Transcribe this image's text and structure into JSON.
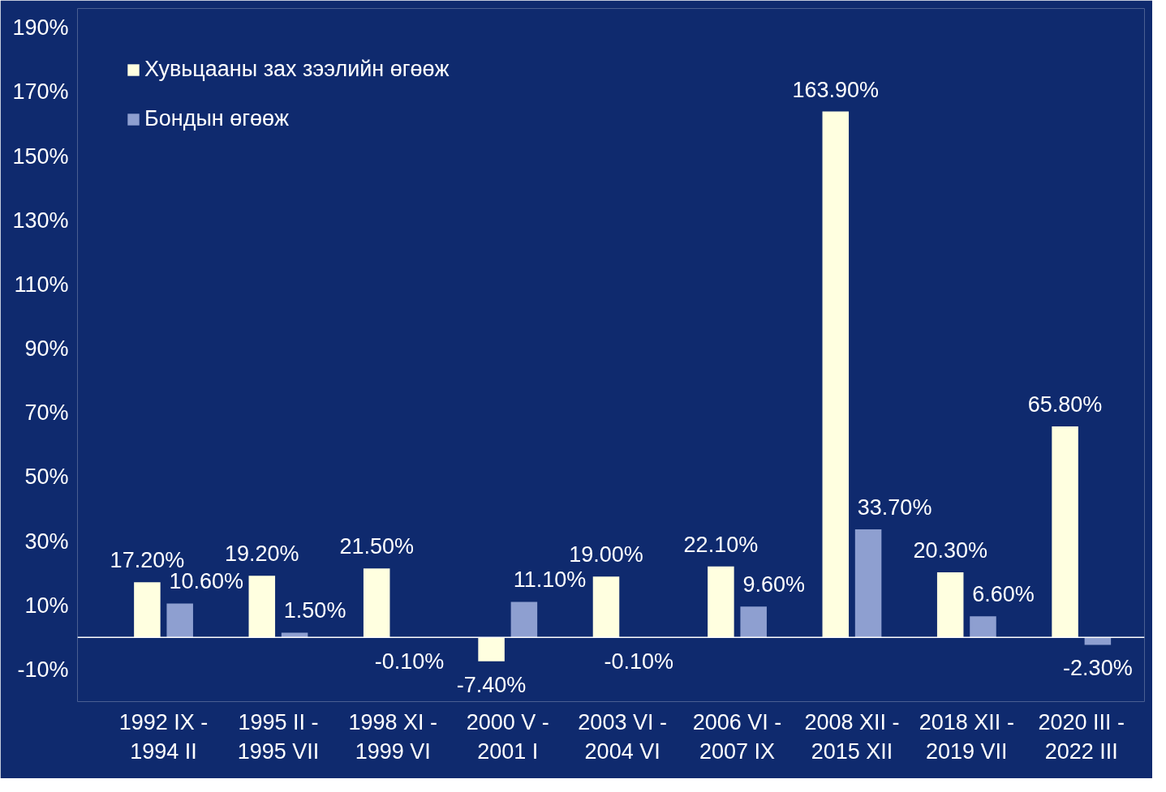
{
  "chart_data": {
    "type": "bar",
    "categories": [
      "1992 IX -\n1994 II",
      "1995 II -\n1995 VII",
      "1998 XI -\n1999 VI",
      "2000 V -\n2001 I",
      "2003 VI -\n2004 VI",
      "2006 VI -\n2007 IX",
      "2008 XII -\n2015 XII",
      "2018 XII -\n2019 VII",
      "2020 III -\n2022 III"
    ],
    "series": [
      {
        "name": "Хувьцааны зах зээлийн өгөөж",
        "color": "#ffffe0",
        "values": [
          17.2,
          19.2,
          21.5,
          -7.4,
          19.0,
          22.1,
          163.9,
          20.3,
          65.8
        ],
        "value_labels": [
          "17.20%",
          "19.20%",
          "21.50%",
          "-7.40%",
          "19.00%",
          "22.10%",
          "163.90%",
          "20.30%",
          "65.80%"
        ]
      },
      {
        "name": "Бондын өгөөж",
        "color": "#8e9fd0",
        "values": [
          10.6,
          1.5,
          -0.1,
          11.1,
          -0.1,
          9.6,
          33.7,
          6.6,
          -2.3
        ],
        "value_labels": [
          "10.60%",
          "1.50%",
          "-0.10%",
          "11.10%",
          "-0.10%",
          "9.60%",
          "33.70%",
          "6.60%",
          "-2.30%"
        ]
      }
    ],
    "ylim": [
      -20,
      196
    ],
    "yticks": [
      {
        "value": -10,
        "label": "-10%"
      },
      {
        "value": 10,
        "label": "10%"
      },
      {
        "value": 30,
        "label": "30%"
      },
      {
        "value": 50,
        "label": "50%"
      },
      {
        "value": 70,
        "label": "70%"
      },
      {
        "value": 90,
        "label": "90%"
      },
      {
        "value": 110,
        "label": "110%"
      },
      {
        "value": 130,
        "label": "130%"
      },
      {
        "value": 150,
        "label": "150%"
      },
      {
        "value": 170,
        "label": "170%"
      },
      {
        "value": 190,
        "label": "190%"
      }
    ],
    "ref_lines": [
      {
        "axis": "y",
        "value": 0,
        "color": "#ffffff"
      }
    ],
    "grid": false,
    "legend": "top left"
  }
}
